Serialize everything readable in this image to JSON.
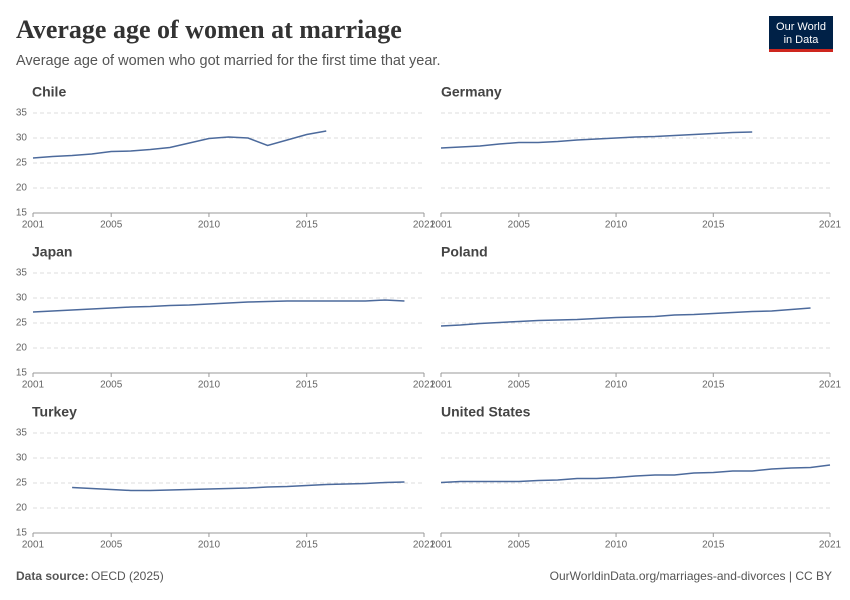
{
  "header": {
    "title": "Average age of women at marriage",
    "subtitle": "Average age of women who got married for the first time that year.",
    "logo": [
      "Our World",
      "in Data"
    ]
  },
  "chart_data": [
    {
      "type": "line",
      "title": "Chile",
      "color": "#4c6a9c",
      "grid": true,
      "xlim": [
        2001,
        2021
      ],
      "ylim": [
        15,
        35
      ],
      "xticks": [
        2001,
        2005,
        2010,
        2015,
        2021
      ],
      "yticks": [
        15,
        20,
        25,
        30,
        35
      ],
      "x": [
        2001,
        2002,
        2003,
        2004,
        2005,
        2006,
        2007,
        2008,
        2009,
        2010,
        2011,
        2012,
        2013,
        2014,
        2015,
        2016
      ],
      "values": [
        26.0,
        26.3,
        26.5,
        26.8,
        27.3,
        27.4,
        27.7,
        28.1,
        29.0,
        29.9,
        30.2,
        30.0,
        28.5,
        29.6,
        30.7,
        31.4
      ]
    },
    {
      "type": "line",
      "title": "Germany",
      "color": "#4c6a9c",
      "grid": true,
      "xlim": [
        2001,
        2021
      ],
      "ylim": [
        15,
        35
      ],
      "xticks": [
        2001,
        2005,
        2010,
        2015,
        2021
      ],
      "yticks": [
        15,
        20,
        25,
        30,
        35
      ],
      "x": [
        2001,
        2002,
        2003,
        2004,
        2005,
        2006,
        2007,
        2008,
        2009,
        2010,
        2011,
        2012,
        2013,
        2014,
        2015,
        2016,
        2017
      ],
      "values": [
        28.0,
        28.2,
        28.4,
        28.8,
        29.1,
        29.1,
        29.3,
        29.6,
        29.8,
        30.0,
        30.2,
        30.3,
        30.5,
        30.7,
        30.9,
        31.1,
        31.2
      ]
    },
    {
      "type": "line",
      "title": "Japan",
      "color": "#4c6a9c",
      "grid": true,
      "xlim": [
        2001,
        2021
      ],
      "ylim": [
        15,
        35
      ],
      "xticks": [
        2001,
        2005,
        2010,
        2015,
        2021
      ],
      "yticks": [
        15,
        20,
        25,
        30,
        35
      ],
      "x": [
        2001,
        2002,
        2003,
        2004,
        2005,
        2006,
        2007,
        2008,
        2009,
        2010,
        2011,
        2012,
        2013,
        2014,
        2015,
        2016,
        2017,
        2018,
        2019,
        2020
      ],
      "values": [
        27.2,
        27.4,
        27.6,
        27.8,
        28.0,
        28.2,
        28.3,
        28.5,
        28.6,
        28.8,
        29.0,
        29.2,
        29.3,
        29.4,
        29.4,
        29.4,
        29.4,
        29.4,
        29.6,
        29.4
      ]
    },
    {
      "type": "line",
      "title": "Poland",
      "color": "#4c6a9c",
      "grid": true,
      "xlim": [
        2001,
        2021
      ],
      "ylim": [
        15,
        35
      ],
      "xticks": [
        2001,
        2005,
        2010,
        2015,
        2021
      ],
      "yticks": [
        15,
        20,
        25,
        30,
        35
      ],
      "x": [
        2001,
        2002,
        2003,
        2004,
        2005,
        2006,
        2007,
        2008,
        2009,
        2010,
        2011,
        2012,
        2013,
        2014,
        2015,
        2016,
        2017,
        2018,
        2019,
        2020
      ],
      "values": [
        24.4,
        24.6,
        24.9,
        25.1,
        25.3,
        25.5,
        25.6,
        25.7,
        25.9,
        26.1,
        26.2,
        26.3,
        26.6,
        26.7,
        26.9,
        27.1,
        27.3,
        27.4,
        27.7,
        28.0
      ]
    },
    {
      "type": "line",
      "title": "Turkey",
      "color": "#4c6a9c",
      "grid": true,
      "xlim": [
        2001,
        2021
      ],
      "ylim": [
        15,
        35
      ],
      "xticks": [
        2001,
        2005,
        2010,
        2015,
        2021
      ],
      "yticks": [
        15,
        20,
        25,
        30,
        35
      ],
      "x": [
        2003,
        2004,
        2005,
        2006,
        2007,
        2008,
        2009,
        2010,
        2011,
        2012,
        2013,
        2014,
        2015,
        2016,
        2017,
        2018,
        2019,
        2020
      ],
      "values": [
        24.1,
        23.9,
        23.7,
        23.5,
        23.5,
        23.6,
        23.7,
        23.8,
        23.9,
        24.0,
        24.2,
        24.3,
        24.5,
        24.7,
        24.8,
        24.9,
        25.1,
        25.2
      ]
    },
    {
      "type": "line",
      "title": "United States",
      "color": "#4c6a9c",
      "grid": true,
      "xlim": [
        2001,
        2021
      ],
      "ylim": [
        15,
        35
      ],
      "xticks": [
        2001,
        2005,
        2010,
        2015,
        2021
      ],
      "yticks": [
        15,
        20,
        25,
        30,
        35
      ],
      "x": [
        2001,
        2002,
        2003,
        2004,
        2005,
        2006,
        2007,
        2008,
        2009,
        2010,
        2011,
        2012,
        2013,
        2014,
        2015,
        2016,
        2017,
        2018,
        2019,
        2020,
        2021
      ],
      "values": [
        25.1,
        25.3,
        25.3,
        25.3,
        25.3,
        25.5,
        25.6,
        25.9,
        25.9,
        26.1,
        26.4,
        26.6,
        26.6,
        27.0,
        27.1,
        27.4,
        27.4,
        27.8,
        28.0,
        28.1,
        28.6
      ]
    }
  ],
  "footer": {
    "source_label": "Data source:",
    "source": "OECD (2025)",
    "url": "OurWorldinData.org/marriages-and-divorces | CC BY"
  }
}
